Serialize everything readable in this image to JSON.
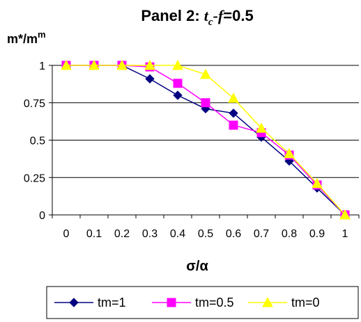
{
  "chart_data": {
    "type": "line",
    "title": {
      "prefix": "Panel 2: ",
      "var1": "t",
      "sub": "c",
      "dash": "-",
      "var2": "f",
      "suffix": "=0.5"
    },
    "ylabel": {
      "base": "m*/m",
      "sup": "m"
    },
    "xlabel": "σ/α",
    "x": [
      0,
      0.1,
      0.2,
      0.3,
      0.4,
      0.5,
      0.6,
      0.7,
      0.8,
      0.9,
      1
    ],
    "xtick_labels": [
      "0",
      "0.1",
      "0.2",
      "0.3",
      "0.4",
      "0.5",
      "0.6",
      "0.7",
      "0.8",
      "0.9",
      "1"
    ],
    "yticks": [
      0,
      0.25,
      0.5,
      0.75,
      1
    ],
    "ytick_labels": [
      "0",
      "0.25",
      "0.5",
      "0.75",
      "1"
    ],
    "ylim": [
      0,
      1
    ],
    "grid": "horizontal major gridlines",
    "legend_position": "bottom",
    "series": [
      {
        "name": "tm=1",
        "color": "#000080",
        "marker": "diamond",
        "values": [
          1,
          1,
          1,
          0.91,
          0.8,
          0.71,
          0.68,
          0.52,
          0.36,
          0.18,
          0
        ]
      },
      {
        "name": "tm=0.5",
        "color": "#FF00FF",
        "marker": "square",
        "values": [
          1,
          1,
          1,
          0.99,
          0.88,
          0.75,
          0.6,
          0.55,
          0.4,
          0.2,
          0
        ]
      },
      {
        "name": "tm=0",
        "color": "#FFFF00",
        "marker": "triangle",
        "values": [
          1,
          1,
          1,
          1,
          1,
          0.94,
          0.78,
          0.58,
          0.41,
          0.21,
          0
        ]
      }
    ]
  }
}
